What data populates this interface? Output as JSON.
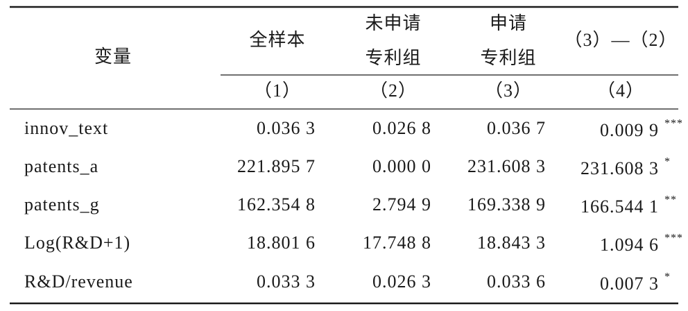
{
  "table": {
    "header": {
      "variable": "变量",
      "columns": [
        [
          "全样本"
        ],
        [
          "未申请",
          "专利组"
        ],
        [
          "申请",
          "专利组"
        ],
        [
          "（3）—（2）"
        ]
      ],
      "numbers": [
        "（1）",
        "（2）",
        "（3）",
        "（4）"
      ]
    },
    "rows": [
      {
        "label": "innov_text",
        "values": [
          "0.036 3",
          "0.026 8",
          "0.036 7",
          "0.009 9"
        ],
        "stars": "***"
      },
      {
        "label": "patents_a",
        "values": [
          "221.895 7",
          "0.000 0",
          "231.608 3",
          "231.608 3"
        ],
        "stars": "*"
      },
      {
        "label": "patents_g",
        "values": [
          "162.354 8",
          "2.794 9",
          "169.338 9",
          "166.544 1"
        ],
        "stars": "**"
      },
      {
        "label": "Log(R&D+1)",
        "values": [
          "18.801 6",
          "17.748 8",
          "18.843 3",
          "1.094 6"
        ],
        "stars": "***"
      },
      {
        "label": "R&D/revenue",
        "values": [
          "0.033 3",
          "0.026 3",
          "0.033 6",
          "0.007 3"
        ],
        "stars": "*"
      }
    ]
  }
}
